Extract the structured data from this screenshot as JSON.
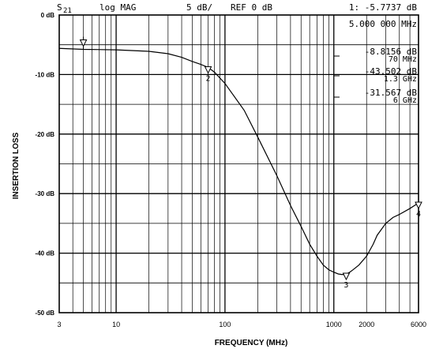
{
  "header": {
    "param_main": "S",
    "param_sub": "21",
    "format": "log MAG",
    "scale": "5 dB/",
    "reference": "REF 0 dB",
    "marker1": "1: -5.7737 dB",
    "marker1_freq": "5.000 000 MHz"
  },
  "markers": [
    {
      "label": "2",
      "value": "-8.8156 dB",
      "freq": "70 MHz",
      "x": 70,
      "y": -8.8156
    },
    {
      "label": "3",
      "value": "-43.502 dB",
      "freq": "1.3 GHz",
      "x": 1300,
      "y": -43.502
    },
    {
      "label": "4",
      "value": "-31.567 dB",
      "freq": "6 GHz",
      "x": 6000,
      "y": -31.567
    }
  ],
  "chart_data": {
    "type": "line",
    "xlabel": "FREQUENCY (MHz)",
    "ylabel": "INSERTION LOSS",
    "x_scale": "log",
    "xlim": [
      3,
      6000
    ],
    "ylim": [
      -50,
      0
    ],
    "x_tick_labels": [
      "3",
      "10",
      "100",
      "1000",
      "2000",
      "6000"
    ],
    "x_ticks": [
      3,
      10,
      100,
      1000,
      2000,
      6000
    ],
    "y_ticks": [
      0,
      -10,
      -20,
      -30,
      -40,
      -50
    ],
    "y_tick_labels": [
      "0 dB",
      "-10 dB",
      "-20 dB",
      "-30 dB",
      "-40 dB",
      "-50 dB"
    ],
    "grid": true,
    "series": [
      {
        "x": [
          3,
          5,
          10,
          20,
          30,
          40,
          50,
          60,
          70,
          80,
          100,
          150,
          200,
          300,
          400,
          500,
          600,
          700,
          800,
          900,
          1000,
          1100,
          1200,
          1300,
          1400,
          1500,
          1700,
          2000,
          2300,
          2500,
          3000,
          3500,
          4000,
          5000,
          6000
        ],
        "y": [
          -5.6,
          -5.77,
          -5.85,
          -6.1,
          -6.5,
          -7.1,
          -7.8,
          -8.3,
          -8.8,
          -9.6,
          -11.5,
          -16,
          -20.5,
          -27,
          -32,
          -35.5,
          -38.5,
          -40.5,
          -42,
          -42.8,
          -43.2,
          -43.5,
          -43.6,
          -43.5,
          -43.2,
          -42.8,
          -42,
          -40.5,
          -38.5,
          -37,
          -35,
          -34,
          -33.5,
          -32.5,
          -31.567
        ]
      }
    ]
  }
}
